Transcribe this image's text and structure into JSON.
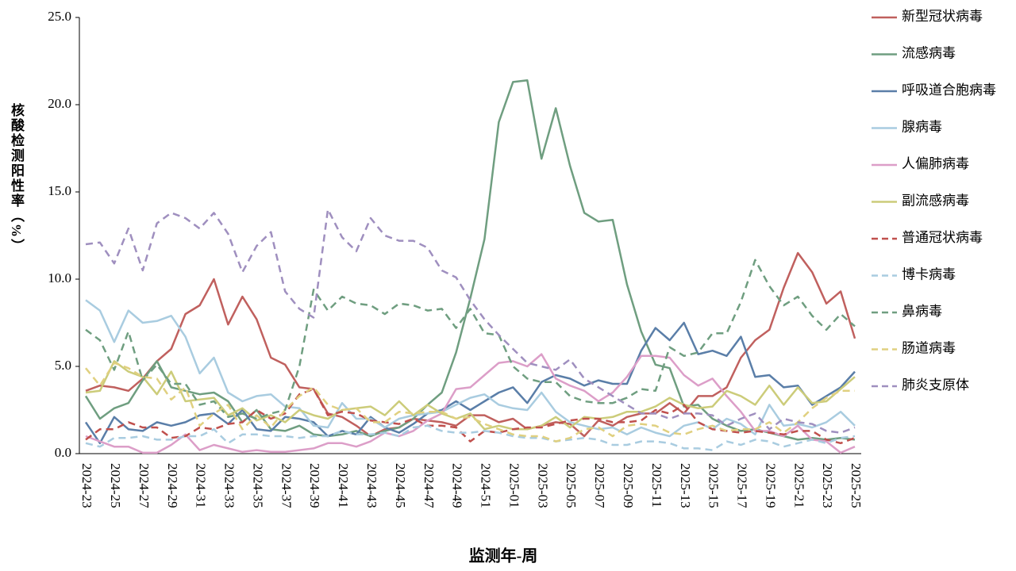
{
  "chart_data": {
    "type": "line",
    "y_label": "核酸检测阳性率（%）",
    "x_label": "监测年-周",
    "categories": [
      "2024-23",
      null,
      "2024-25",
      null,
      "2024-27",
      null,
      "2024-29",
      null,
      "2024-31",
      null,
      "2024-33",
      null,
      "2024-35",
      null,
      "2024-37",
      null,
      "2024-39",
      null,
      "2024-41",
      null,
      "2024-43",
      null,
      "2024-45",
      null,
      "2024-47",
      null,
      "2024-49",
      null,
      "2024-51",
      null,
      "2025-01",
      null,
      "2025-03",
      null,
      "2025-05",
      null,
      "2025-07",
      null,
      "2025-09",
      null,
      "2025-11",
      null,
      "2025-13",
      null,
      "2025-15",
      null,
      "2025-17",
      null,
      "2025-19",
      null,
      "2025-21",
      null,
      "2025-23",
      null,
      "2025-25"
    ],
    "ylim": [
      0,
      25
    ],
    "yticks": [
      {
        "value": 0,
        "label": "0.0"
      },
      {
        "value": 5,
        "label": "5.0"
      },
      {
        "value": 10,
        "label": "10.0"
      },
      {
        "value": 15,
        "label": "15.0"
      },
      {
        "value": 20,
        "label": "20.0"
      },
      {
        "value": 25,
        "label": "25.0"
      }
    ],
    "grid": false,
    "legend": "right",
    "series": [
      {
        "name": "新型冠状病毒",
        "color": "#c0605e",
        "style": "solid",
        "values": [
          3.6,
          3.9,
          3.8,
          3.6,
          4.3,
          5.3,
          6.0,
          8.0,
          8.5,
          10.0,
          7.4,
          9.0,
          7.7,
          5.5,
          5.1,
          3.8,
          3.7,
          2.3,
          2.1,
          1.6,
          1.0,
          1.4,
          1.5,
          2.0,
          1.9,
          1.8,
          1.6,
          2.2,
          2.2,
          1.8,
          2.0,
          1.4,
          1.6,
          1.8,
          1.7,
          1.0,
          1.9,
          1.6,
          2.1,
          2.3,
          2.3,
          2.9,
          2.3,
          3.3,
          3.3,
          3.8,
          5.5,
          6.5,
          7.1,
          9.5,
          11.5,
          10.4,
          8.6,
          9.3,
          6.6
        ]
      },
      {
        "name": "流感病毒",
        "color": "#6f9e80",
        "style": "solid",
        "values": [
          3.3,
          2.0,
          2.6,
          2.9,
          4.2,
          5.3,
          3.8,
          3.6,
          3.4,
          3.5,
          3.0,
          1.8,
          2.5,
          1.4,
          1.3,
          1.6,
          1.1,
          1.0,
          1.1,
          1.3,
          1.0,
          1.3,
          1.5,
          2.0,
          2.8,
          3.5,
          5.8,
          8.9,
          12.3,
          19.0,
          21.3,
          21.4,
          16.9,
          19.8,
          16.5,
          13.8,
          13.3,
          13.4,
          9.7,
          7.0,
          5.1,
          4.9,
          2.7,
          2.8,
          2.0,
          1.6,
          1.3,
          1.4,
          1.2,
          1.0,
          0.8,
          0.9,
          0.8,
          0.9,
          0.8
        ]
      },
      {
        "name": "呼吸道合胞病毒",
        "color": "#5a7ea8",
        "style": "solid",
        "values": [
          1.8,
          0.6,
          2.1,
          1.4,
          1.3,
          1.8,
          1.6,
          1.8,
          2.2,
          2.3,
          1.7,
          2.5,
          1.4,
          1.3,
          2.1,
          2.0,
          1.8,
          1.0,
          1.3,
          1.1,
          2.1,
          1.5,
          1.2,
          1.7,
          2.3,
          2.5,
          3.0,
          2.5,
          3.0,
          3.5,
          3.8,
          2.9,
          4.1,
          4.5,
          4.3,
          3.9,
          4.2,
          4.0,
          4.0,
          5.9,
          7.2,
          6.5,
          7.5,
          5.7,
          5.9,
          5.6,
          6.7,
          4.4,
          4.5,
          3.8,
          3.9,
          2.8,
          3.3,
          3.8,
          4.7
        ]
      },
      {
        "name": "腺病毒",
        "color": "#a9cce0",
        "style": "solid",
        "values": [
          8.8,
          8.2,
          6.4,
          8.2,
          7.5,
          7.6,
          7.9,
          6.7,
          4.6,
          5.5,
          3.5,
          3.0,
          3.3,
          3.4,
          2.7,
          2.6,
          1.6,
          1.5,
          2.9,
          2.0,
          2.0,
          1.5,
          2.0,
          2.2,
          2.3,
          2.4,
          2.8,
          3.2,
          3.4,
          2.8,
          2.6,
          2.5,
          3.5,
          2.4,
          1.8,
          1.6,
          1.4,
          1.5,
          1.1,
          1.5,
          1.2,
          1.0,
          1.6,
          1.8,
          1.4,
          2.0,
          1.7,
          1.1,
          2.8,
          1.6,
          1.7,
          1.5,
          1.8,
          2.4,
          1.6
        ]
      },
      {
        "name": "人偏肺病毒",
        "color": "#dc9ec8",
        "style": "solid",
        "values": [
          1.0,
          0.7,
          0.4,
          0.4,
          0.05,
          0.05,
          0.5,
          1.1,
          0.2,
          0.5,
          0.3,
          0.1,
          0.2,
          0.1,
          0.1,
          0.2,
          0.3,
          0.6,
          0.6,
          0.4,
          0.7,
          1.2,
          1.0,
          1.3,
          1.9,
          2.3,
          3.7,
          3.8,
          4.5,
          5.2,
          5.3,
          5.0,
          5.7,
          4.3,
          3.9,
          3.6,
          3.0,
          3.5,
          4.4,
          5.6,
          5.6,
          5.5,
          4.5,
          3.9,
          4.3,
          3.3,
          2.4,
          1.3,
          1.3,
          1.0,
          1.6,
          0.8,
          0.7,
          0.05,
          0.4
        ]
      },
      {
        "name": "副流感病毒",
        "color": "#cccc7a",
        "style": "solid",
        "values": [
          3.5,
          3.6,
          5.3,
          4.7,
          4.4,
          3.4,
          4.7,
          3.0,
          3.1,
          3.2,
          2.2,
          2.6,
          1.9,
          2.2,
          1.8,
          2.5,
          2.2,
          2.0,
          2.5,
          2.6,
          2.7,
          2.2,
          3.0,
          2.2,
          2.8,
          2.3,
          2.0,
          2.3,
          1.4,
          1.6,
          1.4,
          1.4,
          1.6,
          2.1,
          1.5,
          2.1,
          2.0,
          2.1,
          2.4,
          2.4,
          2.7,
          3.2,
          2.8,
          2.6,
          2.7,
          3.6,
          3.3,
          2.8,
          3.9,
          2.8,
          3.8,
          2.9,
          3.0,
          3.7,
          4.4
        ]
      },
      {
        "name": "普通冠状病毒",
        "color": "#c0504d",
        "style": "dashed",
        "values": [
          0.8,
          1.4,
          1.4,
          1.8,
          1.5,
          1.5,
          0.9,
          1.0,
          1.5,
          1.4,
          1.7,
          1.8,
          2.5,
          2.0,
          2.3,
          3.4,
          3.7,
          2.2,
          2.4,
          2.3,
          1.9,
          1.8,
          1.7,
          2.0,
          1.6,
          1.6,
          1.5,
          0.7,
          1.3,
          1.2,
          1.4,
          1.5,
          1.5,
          1.7,
          1.9,
          2.0,
          2.0,
          1.8,
          1.8,
          1.9,
          2.5,
          2.3,
          2.8,
          1.8,
          1.4,
          1.3,
          1.2,
          1.3,
          1.2,
          1.1,
          1.3,
          1.3,
          0.8,
          0.6,
          0.9
        ]
      },
      {
        "name": "博卡病毒",
        "color": "#a9cce0",
        "style": "dashed",
        "values": [
          0.6,
          0.4,
          0.9,
          0.9,
          1.0,
          0.8,
          0.8,
          1.0,
          1.0,
          1.4,
          0.6,
          1.1,
          1.1,
          1.0,
          1.0,
          0.9,
          1.0,
          1.0,
          1.3,
          1.1,
          1.1,
          1.2,
          1.0,
          1.5,
          1.6,
          1.3,
          1.2,
          1.2,
          1.3,
          1.2,
          1.0,
          0.9,
          0.9,
          0.7,
          0.8,
          0.9,
          0.8,
          0.5,
          0.5,
          0.7,
          0.7,
          0.6,
          0.3,
          0.3,
          0.2,
          0.7,
          0.5,
          0.8,
          0.7,
          0.4,
          0.6,
          0.8,
          0.6,
          0.9,
          1.0
        ]
      },
      {
        "name": "鼻病毒",
        "color": "#6f9e80",
        "style": "dashed",
        "values": [
          7.1,
          6.5,
          4.8,
          7.0,
          4.2,
          5.1,
          4.0,
          4.0,
          2.8,
          3.0,
          2.1,
          2.3,
          2.0,
          2.3,
          2.5,
          5.0,
          9.4,
          8.2,
          9.0,
          8.6,
          8.5,
          8.0,
          8.6,
          8.5,
          8.2,
          8.3,
          7.2,
          8.3,
          6.9,
          6.8,
          5.0,
          4.3,
          4.1,
          4.1,
          3.3,
          3.0,
          2.9,
          2.9,
          3.2,
          3.7,
          3.6,
          6.1,
          5.6,
          5.8,
          6.9,
          6.9,
          8.7,
          11.1,
          9.6,
          8.5,
          9.0,
          7.9,
          7.1,
          8.0,
          7.3
        ]
      },
      {
        "name": "肠道病毒",
        "color": "#e0d080",
        "style": "dashed",
        "values": [
          4.9,
          3.9,
          5.2,
          4.9,
          4.4,
          4.3,
          3.1,
          3.8,
          1.6,
          2.3,
          2.8,
          1.4,
          2.2,
          1.5,
          2.5,
          3.3,
          3.8,
          2.8,
          2.5,
          2.6,
          1.8,
          1.8,
          2.4,
          2.3,
          2.4,
          2.4,
          2.0,
          2.1,
          1.7,
          1.4,
          1.1,
          1.0,
          1.0,
          0.7,
          0.9,
          1.4,
          1.5,
          1.0,
          1.6,
          1.7,
          1.6,
          1.2,
          1.1,
          1.4,
          1.6,
          1.3,
          1.4,
          1.4,
          1.8,
          1.2,
          1.8,
          2.6,
          3.2,
          3.6,
          3.6
        ]
      },
      {
        "name": "肺炎支原体",
        "color": "#9f8fbf",
        "style": "dashed",
        "values": [
          12.0,
          12.1,
          10.9,
          12.9,
          10.5,
          13.2,
          13.8,
          13.5,
          12.9,
          13.8,
          12.6,
          10.4,
          11.9,
          12.7,
          9.3,
          8.3,
          7.8,
          14.0,
          12.4,
          11.6,
          13.5,
          12.5,
          12.2,
          12.2,
          11.8,
          10.5,
          10.1,
          8.8,
          7.7,
          6.8,
          6.0,
          5.2,
          5.0,
          4.8,
          5.4,
          4.3,
          3.8,
          3.3,
          2.8,
          2.3,
          2.3,
          2.0,
          2.3,
          2.3,
          2.2,
          1.6,
          2.0,
          2.3,
          1.4,
          2.0,
          1.8,
          1.7,
          1.3,
          1.2,
          1.5
        ]
      }
    ]
  }
}
